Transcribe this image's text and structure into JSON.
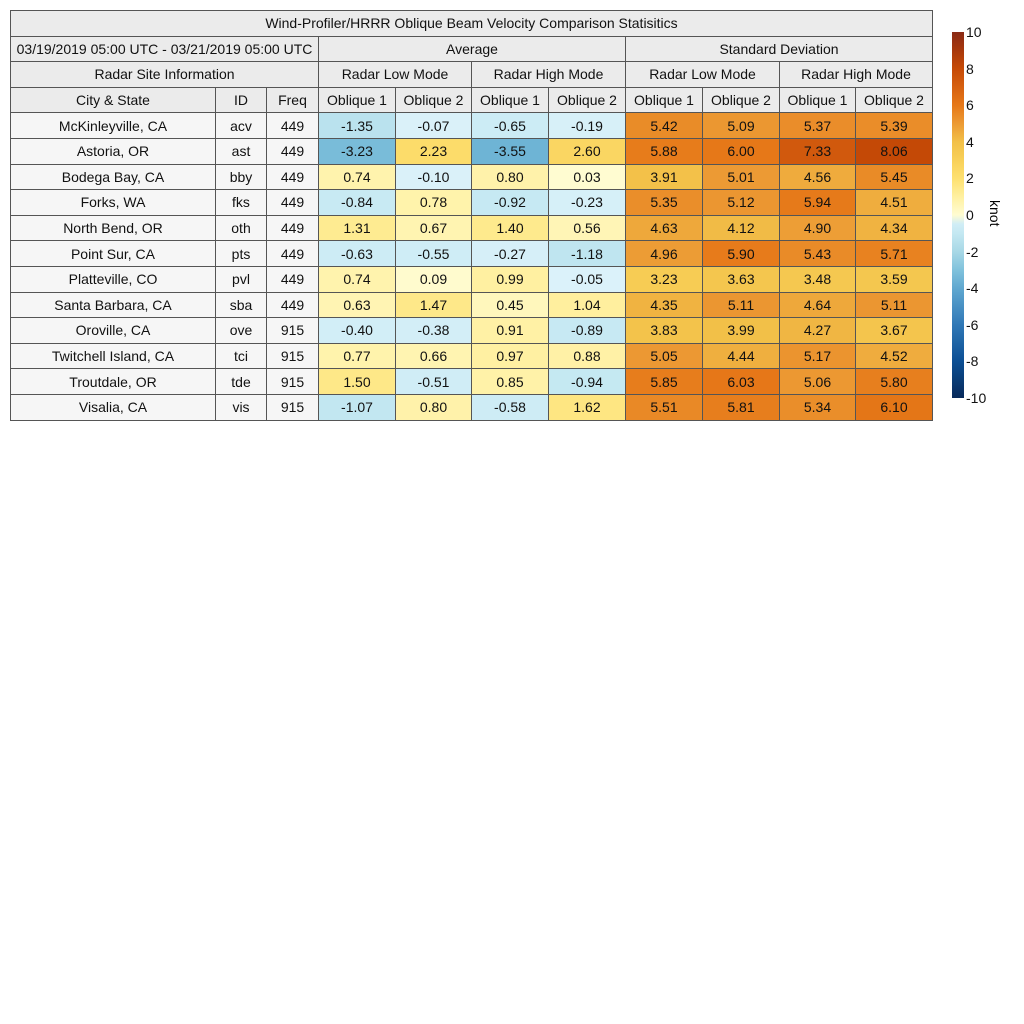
{
  "chart_data": {
    "type": "heatmap",
    "title": "Wind-Profiler/HRRR Oblique Beam Velocity Comparison Statisitics",
    "period": "03/19/2019 05:00 UTC - 03/21/2019 05:00 UTC",
    "group_headers": [
      "Average",
      "Standard Deviation"
    ],
    "site_header": "Radar Site Information",
    "mode_headers": [
      "Radar Low Mode",
      "Radar High Mode",
      "Radar Low Mode",
      "Radar High Mode"
    ],
    "column_headers": [
      "City & State",
      "ID",
      "Freq",
      "Oblique 1",
      "Oblique 2",
      "Oblique 1",
      "Oblique 2",
      "Oblique 1",
      "Oblique 2",
      "Oblique 1",
      "Oblique 2"
    ],
    "rows": [
      {
        "city": "McKinleyville, CA",
        "id": "acv",
        "freq": "449",
        "values": [
          "-1.35",
          "-0.07",
          "-0.65",
          "-0.19",
          "5.42",
          "5.09",
          "5.37",
          "5.39"
        ]
      },
      {
        "city": "Astoria, OR",
        "id": "ast",
        "freq": "449",
        "values": [
          "-3.23",
          "2.23",
          "-3.55",
          "2.60",
          "5.88",
          "6.00",
          "7.33",
          "8.06"
        ]
      },
      {
        "city": "Bodega Bay, CA",
        "id": "bby",
        "freq": "449",
        "values": [
          "0.74",
          "-0.10",
          "0.80",
          "0.03",
          "3.91",
          "5.01",
          "4.56",
          "5.45"
        ]
      },
      {
        "city": "Forks, WA",
        "id": "fks",
        "freq": "449",
        "values": [
          "-0.84",
          "0.78",
          "-0.92",
          "-0.23",
          "5.35",
          "5.12",
          "5.94",
          "4.51"
        ]
      },
      {
        "city": "North Bend, OR",
        "id": "oth",
        "freq": "449",
        "values": [
          "1.31",
          "0.67",
          "1.40",
          "0.56",
          "4.63",
          "4.12",
          "4.90",
          "4.34"
        ]
      },
      {
        "city": "Point Sur, CA",
        "id": "pts",
        "freq": "449",
        "values": [
          "-0.63",
          "-0.55",
          "-0.27",
          "-1.18",
          "4.96",
          "5.90",
          "5.43",
          "5.71"
        ]
      },
      {
        "city": "Platteville, CO",
        "id": "pvl",
        "freq": "449",
        "values": [
          "0.74",
          "0.09",
          "0.99",
          "-0.05",
          "3.23",
          "3.63",
          "3.48",
          "3.59"
        ]
      },
      {
        "city": "Santa Barbara, CA",
        "id": "sba",
        "freq": "449",
        "values": [
          "0.63",
          "1.47",
          "0.45",
          "1.04",
          "4.35",
          "5.11",
          "4.64",
          "5.11"
        ]
      },
      {
        "city": "Oroville, CA",
        "id": "ove",
        "freq": "915",
        "values": [
          "-0.40",
          "-0.38",
          "0.91",
          "-0.89",
          "3.83",
          "3.99",
          "4.27",
          "3.67"
        ]
      },
      {
        "city": "Twitchell Island, CA",
        "id": "tci",
        "freq": "915",
        "values": [
          "0.77",
          "0.66",
          "0.97",
          "0.88",
          "5.05",
          "4.44",
          "5.17",
          "4.52"
        ]
      },
      {
        "city": "Troutdale, OR",
        "id": "tde",
        "freq": "915",
        "values": [
          "1.50",
          "-0.51",
          "0.85",
          "-0.94",
          "5.85",
          "6.03",
          "5.06",
          "5.80"
        ]
      },
      {
        "city": "Visalia, CA",
        "id": "vis",
        "freq": "915",
        "values": [
          "-1.07",
          "0.80",
          "-0.58",
          "1.62",
          "5.51",
          "5.81",
          "5.34",
          "6.10"
        ]
      }
    ],
    "colorbar": {
      "label": "knot",
      "range": [
        -10,
        10
      ],
      "ticks": [
        "10",
        "8",
        "6",
        "4",
        "2",
        "0",
        "-2",
        "-4",
        "-6",
        "-8",
        "-10"
      ],
      "colormap": "blue-white-yellow-orange-red diverging"
    }
  }
}
